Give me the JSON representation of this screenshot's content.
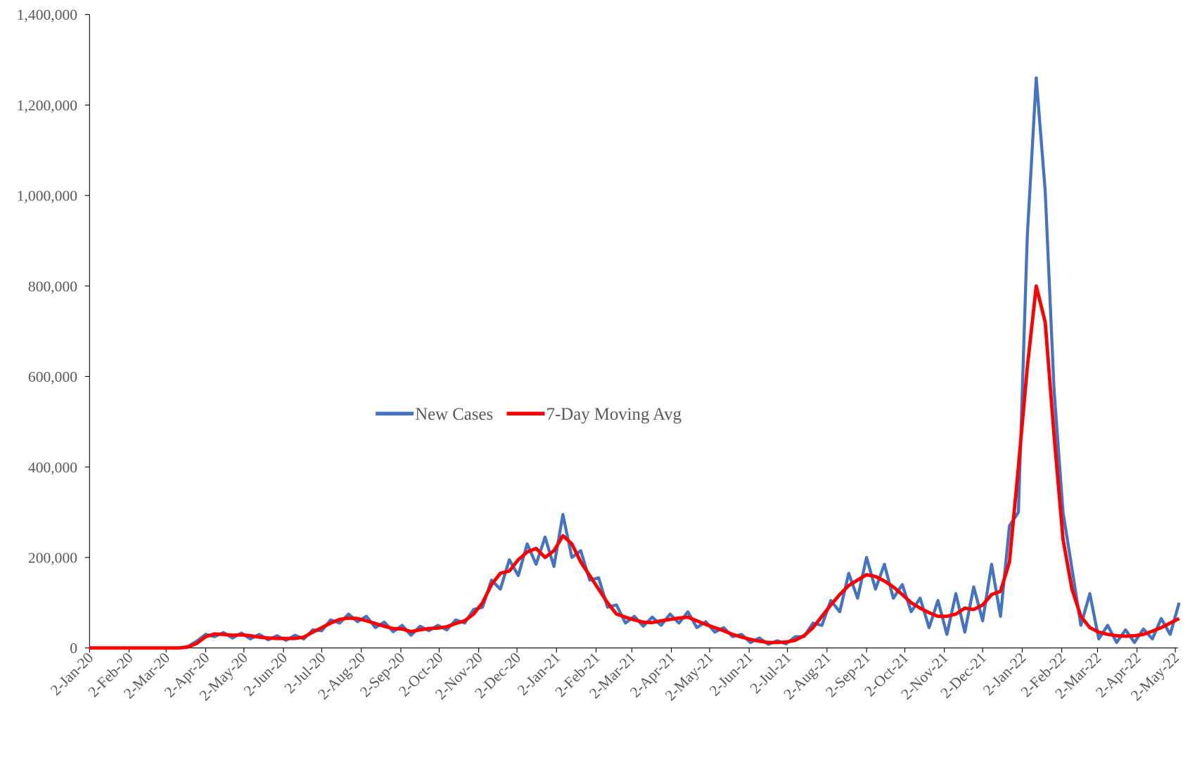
{
  "chart_data": {
    "type": "line",
    "x": [
      "2020-01-02",
      "2020-01-09",
      "2020-01-16",
      "2020-01-23",
      "2020-01-30",
      "2020-02-06",
      "2020-02-13",
      "2020-02-20",
      "2020-02-27",
      "2020-03-05",
      "2020-03-12",
      "2020-03-19",
      "2020-03-26",
      "2020-04-02",
      "2020-04-09",
      "2020-04-16",
      "2020-04-23",
      "2020-04-30",
      "2020-05-07",
      "2020-05-14",
      "2020-05-21",
      "2020-05-28",
      "2020-06-04",
      "2020-06-11",
      "2020-06-18",
      "2020-06-25",
      "2020-07-02",
      "2020-07-09",
      "2020-07-16",
      "2020-07-23",
      "2020-07-30",
      "2020-08-06",
      "2020-08-13",
      "2020-08-20",
      "2020-08-27",
      "2020-09-03",
      "2020-09-10",
      "2020-09-17",
      "2020-09-24",
      "2020-10-01",
      "2020-10-08",
      "2020-10-15",
      "2020-10-22",
      "2020-10-29",
      "2020-11-05",
      "2020-11-12",
      "2020-11-19",
      "2020-11-26",
      "2020-12-03",
      "2020-12-10",
      "2020-12-17",
      "2020-12-24",
      "2020-12-31",
      "2021-01-07",
      "2021-01-14",
      "2021-01-21",
      "2021-01-28",
      "2021-02-04",
      "2021-02-11",
      "2021-02-18",
      "2021-02-25",
      "2021-03-04",
      "2021-03-11",
      "2021-03-18",
      "2021-03-25",
      "2021-04-01",
      "2021-04-08",
      "2021-04-15",
      "2021-04-22",
      "2021-04-29",
      "2021-05-06",
      "2021-05-13",
      "2021-05-20",
      "2021-05-27",
      "2021-06-03",
      "2021-06-10",
      "2021-06-17",
      "2021-06-24",
      "2021-07-01",
      "2021-07-08",
      "2021-07-15",
      "2021-07-22",
      "2021-07-29",
      "2021-08-05",
      "2021-08-12",
      "2021-08-19",
      "2021-08-26",
      "2021-09-02",
      "2021-09-09",
      "2021-09-16",
      "2021-09-23",
      "2021-09-30",
      "2021-10-07",
      "2021-10-14",
      "2021-10-21",
      "2021-10-28",
      "2021-11-04",
      "2021-11-11",
      "2021-11-18",
      "2021-11-25",
      "2021-12-02",
      "2021-12-09",
      "2021-12-16",
      "2021-12-23",
      "2021-12-30",
      "2022-01-06",
      "2022-01-13",
      "2022-01-20",
      "2022-01-27",
      "2022-02-03",
      "2022-02-10",
      "2022-02-17",
      "2022-02-24",
      "2022-03-03",
      "2022-03-10",
      "2022-03-17",
      "2022-03-24",
      "2022-03-31",
      "2022-04-07",
      "2022-04-14",
      "2022-04-21",
      "2022-04-28",
      "2022-05-05"
    ],
    "series": [
      {
        "name": "New Cases",
        "color": "#4472c4",
        "values": [
          0,
          0,
          0,
          0,
          0,
          0,
          0,
          0,
          0,
          0,
          0,
          3000,
          15000,
          30000,
          25000,
          34000,
          22000,
          33000,
          20000,
          30000,
          18000,
          27000,
          17000,
          28000,
          20000,
          40000,
          38000,
          62000,
          55000,
          75000,
          58000,
          70000,
          45000,
          57000,
          36000,
          50000,
          28000,
          48000,
          38000,
          50000,
          40000,
          62000,
          55000,
          85000,
          90000,
          150000,
          130000,
          195000,
          160000,
          230000,
          185000,
          245000,
          180000,
          295000,
          200000,
          215000,
          150000,
          155000,
          90000,
          95000,
          55000,
          70000,
          48000,
          68000,
          50000,
          75000,
          55000,
          80000,
          45000,
          58000,
          35000,
          45000,
          25000,
          30000,
          12000,
          22000,
          8000,
          16000,
          9000,
          25000,
          25000,
          55000,
          50000,
          105000,
          80000,
          165000,
          110000,
          200000,
          130000,
          185000,
          110000,
          140000,
          80000,
          110000,
          45000,
          105000,
          30000,
          120000,
          35000,
          135000,
          60000,
          185000,
          70000,
          270000,
          300000,
          910000,
          1260000,
          1010000,
          570000,
          300000,
          175000,
          50000,
          120000,
          20000,
          50000,
          12000,
          40000,
          12000,
          42000,
          20000,
          65000,
          30000,
          100000
        ]
      },
      {
        "name": "7-Day Moving Avg",
        "color": "#ff0000",
        "values": [
          0,
          0,
          0,
          0,
          0,
          0,
          0,
          0,
          0,
          0,
          0,
          2000,
          10000,
          25000,
          31000,
          30000,
          28000,
          29000,
          27000,
          24000,
          22000,
          21000,
          21000,
          21000,
          24000,
          35000,
          45000,
          55000,
          63000,
          66000,
          65000,
          60000,
          54000,
          48000,
          43000,
          42000,
          36000,
          40000,
          43000,
          44000,
          47000,
          54000,
          60000,
          75000,
          100000,
          140000,
          165000,
          170000,
          195000,
          212000,
          220000,
          200000,
          215000,
          248000,
          230000,
          190000,
          160000,
          130000,
          100000,
          75000,
          68000,
          62000,
          57000,
          56000,
          60000,
          63000,
          66000,
          68000,
          60000,
          52000,
          45000,
          38000,
          30000,
          24000,
          19000,
          15000,
          12000,
          12000,
          13000,
          17000,
          27000,
          45000,
          70000,
          95000,
          118000,
          138000,
          150000,
          162000,
          158000,
          148000,
          135000,
          118000,
          100000,
          88000,
          78000,
          70000,
          70000,
          75000,
          88000,
          85000,
          95000,
          118000,
          125000,
          190000,
          400000,
          620000,
          800000,
          720000,
          470000,
          240000,
          130000,
          70000,
          45000,
          35000,
          30000,
          27000,
          26000,
          27000,
          30000,
          37000,
          45000,
          55000,
          65000
        ]
      }
    ],
    "xlim": [
      "2020-01-02",
      "2022-05-04"
    ],
    "xticks": [
      {
        "value": "2020-01-02",
        "label": "2-Jan-20"
      },
      {
        "value": "2020-02-02",
        "label": "2-Feb-20"
      },
      {
        "value": "2020-03-02",
        "label": "2-Mar-20"
      },
      {
        "value": "2020-04-02",
        "label": "2-Apr-20"
      },
      {
        "value": "2020-05-02",
        "label": "2-May-20"
      },
      {
        "value": "2020-06-02",
        "label": "2-Jun-20"
      },
      {
        "value": "2020-07-02",
        "label": "2-Jul-20"
      },
      {
        "value": "2020-08-02",
        "label": "2-Aug-20"
      },
      {
        "value": "2020-09-02",
        "label": "2-Sep-20"
      },
      {
        "value": "2020-10-02",
        "label": "2-Oct-20"
      },
      {
        "value": "2020-11-02",
        "label": "2-Nov-20"
      },
      {
        "value": "2020-12-02",
        "label": "2-Dec-20"
      },
      {
        "value": "2021-01-02",
        "label": "2-Jan-21"
      },
      {
        "value": "2021-02-02",
        "label": "2-Feb-21"
      },
      {
        "value": "2021-03-02",
        "label": "2-Mar-21"
      },
      {
        "value": "2021-04-02",
        "label": "2-Apr-21"
      },
      {
        "value": "2021-05-02",
        "label": "2-May-21"
      },
      {
        "value": "2021-06-02",
        "label": "2-Jun-21"
      },
      {
        "value": "2021-07-02",
        "label": "2-Jul-21"
      },
      {
        "value": "2021-08-02",
        "label": "2-Aug-21"
      },
      {
        "value": "2021-09-02",
        "label": "2-Sep-21"
      },
      {
        "value": "2021-10-02",
        "label": "2-Oct-21"
      },
      {
        "value": "2021-11-02",
        "label": "2-Nov-21"
      },
      {
        "value": "2021-12-02",
        "label": "2-Dec-21"
      },
      {
        "value": "2022-01-02",
        "label": "2-Jan-22"
      },
      {
        "value": "2022-02-02",
        "label": "2-Feb-22"
      },
      {
        "value": "2022-03-02",
        "label": "2-Mar-22"
      },
      {
        "value": "2022-04-02",
        "label": "2-Apr-22"
      },
      {
        "value": "2022-05-02",
        "label": "2-May-22"
      }
    ],
    "ylim": [
      0,
      1400000
    ],
    "yticks": [
      0,
      {
        "value": 200000,
        "label": "200,000"
      },
      {
        "value": 400000,
        "label": "400,000"
      },
      {
        "value": 600000,
        "label": "600,000"
      },
      {
        "value": 800000,
        "label": "800,000"
      },
      {
        "value": 1000000,
        "label": "1,000,000"
      },
      {
        "value": 1200000,
        "label": "1,200,000"
      },
      {
        "value": 1400000,
        "label": "1,400,000"
      }
    ],
    "grid": false,
    "legend": "center"
  }
}
